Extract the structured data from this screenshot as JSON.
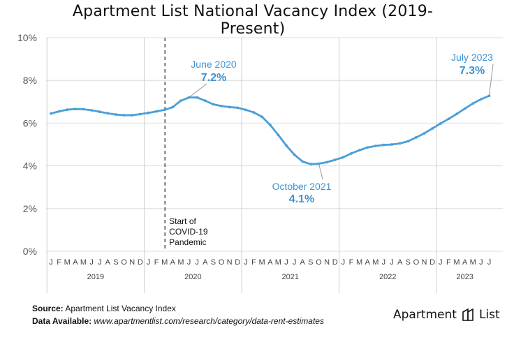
{
  "title": "Apartment List National Vacancy Index (2019-Present)",
  "chart_data": {
    "type": "line",
    "title": "Apartment List National Vacancy Index (2019-Present)",
    "y_unit": "%",
    "ylim": [
      0,
      10
    ],
    "yticks": [
      0,
      2,
      4,
      6,
      8,
      10
    ],
    "ytick_labels": [
      "0%",
      "2%",
      "4%",
      "6%",
      "8%",
      "10%"
    ],
    "grid": "horizontal",
    "month_labels": [
      "J",
      "F",
      "M",
      "A",
      "M",
      "J",
      "J",
      "A",
      "S",
      "O",
      "N",
      "D",
      "J",
      "F",
      "M",
      "A",
      "M",
      "J",
      "J",
      "A",
      "S",
      "O",
      "N",
      "D",
      "J",
      "F",
      "M",
      "A",
      "M",
      "J",
      "J",
      "A",
      "S",
      "O",
      "N",
      "D",
      "J",
      "F",
      "M",
      "A",
      "M",
      "J",
      "J",
      "A",
      "S",
      "O",
      "N",
      "D",
      "J",
      "F",
      "M",
      "A",
      "M",
      "J",
      "J"
    ],
    "year_labels": [
      "2019",
      "2020",
      "2021",
      "2022",
      "2023"
    ],
    "series": [
      {
        "color": "#4a9fd8",
        "values": [
          6.45,
          6.55,
          6.63,
          6.66,
          6.65,
          6.6,
          6.53,
          6.46,
          6.4,
          6.37,
          6.37,
          6.42,
          6.48,
          6.55,
          6.62,
          6.75,
          7.05,
          7.2,
          7.2,
          7.05,
          6.88,
          6.8,
          6.75,
          6.72,
          6.62,
          6.5,
          6.3,
          5.92,
          5.45,
          4.95,
          4.52,
          4.2,
          4.08,
          4.1,
          4.17,
          4.28,
          4.4,
          4.58,
          4.73,
          4.86,
          4.93,
          4.98,
          5.0,
          5.05,
          5.15,
          5.33,
          5.52,
          5.75,
          5.98,
          6.2,
          6.43,
          6.68,
          6.92,
          7.12,
          7.28
        ]
      }
    ],
    "annotations": [
      {
        "label": "June 2020",
        "value": "7.2%"
      },
      {
        "label": "October 2021",
        "value": "4.1%"
      },
      {
        "label": "July 2023",
        "value": "7.3%"
      }
    ],
    "event_marker": {
      "month_index": 14,
      "label_lines": [
        "Start of",
        "COVID-19",
        "Pandemic"
      ]
    }
  },
  "footer": {
    "source_label": "Source:",
    "source_value": "Apartment List Vacancy Index",
    "data_label": "Data Available:",
    "data_value": "www.apartmentlist.com/research/category/data-rent-estimates"
  },
  "brand": {
    "word1": "Apartment",
    "word2": "List"
  }
}
